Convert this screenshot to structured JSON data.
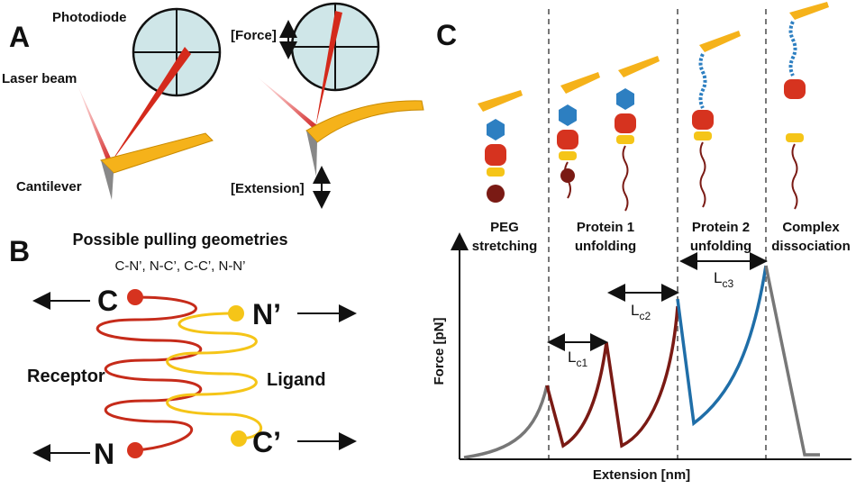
{
  "panels": {
    "a": {
      "letter": "A",
      "photodiode": "Photodiode",
      "laser_beam": "Laser beam",
      "cantilever": "Cantilever",
      "force": "[Force]",
      "extension": "[Extension]"
    },
    "b": {
      "letter": "B",
      "title": "Possible pulling geometries",
      "geometries": "C-N’, N-C’, C-C’, N-N’",
      "receptor": {
        "label": "Receptor",
        "termini": [
          "C",
          "N"
        ]
      },
      "ligand": {
        "label": "Ligand",
        "termini": [
          "N’",
          "C’"
        ]
      }
    },
    "c": {
      "letter": "C",
      "stages": [
        [
          "PEG",
          "stretching"
        ],
        [
          "Protein 1",
          "unfolding"
        ],
        [
          "Protein 2",
          "unfolding"
        ],
        [
          "Complex",
          "dissociation"
        ]
      ],
      "contour_lengths": [
        {
          "main": "L",
          "sub": "c1"
        },
        {
          "main": "L",
          "sub": "c2"
        },
        {
          "main": "L",
          "sub": "c3"
        }
      ],
      "y_axis_label": "Force [pN]",
      "x_axis_label": "Extension [nm]"
    }
  }
}
